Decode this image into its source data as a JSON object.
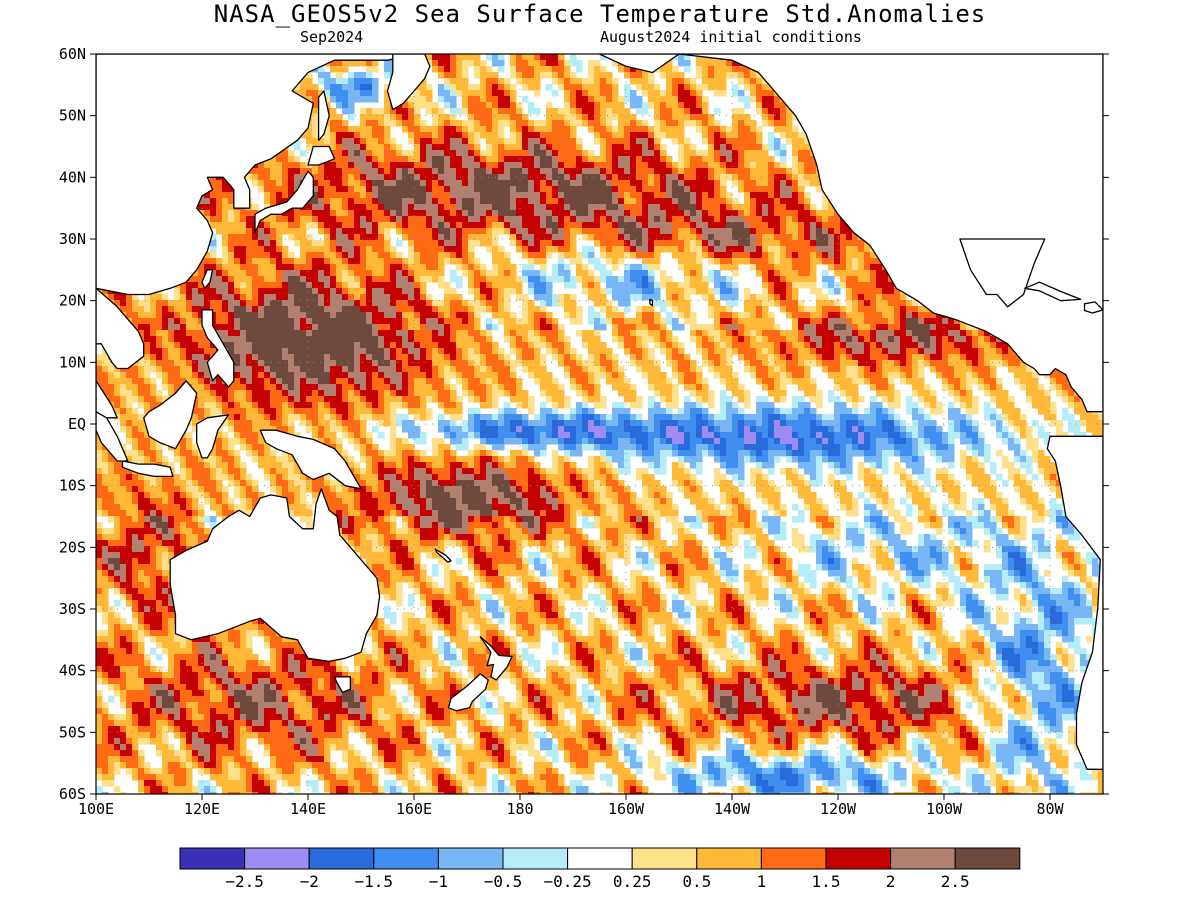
{
  "map": {
    "title": "NASA_GEOS5v2 Sea Surface Temperature Std.Anomalies",
    "subtitle_left": "Sep2024",
    "subtitle_right": "August2024 initial conditions",
    "lat_labels": [
      "60N",
      "50N",
      "40N",
      "30N",
      "20N",
      "10N",
      "EQ",
      "10S",
      "20S",
      "30S",
      "40S",
      "50S",
      "60S"
    ],
    "lon_labels": [
      "100E",
      "120E",
      "140E",
      "160E",
      "180",
      "160W",
      "140W",
      "120W",
      "100W",
      "80W"
    ],
    "extent": {
      "lon_min": 100,
      "lon_max": 290,
      "lat_min": -60,
      "lat_max": 60
    }
  },
  "colorbar": {
    "colors": [
      "#3b2fb8",
      "#9d8df2",
      "#2a6bdc",
      "#3f8ef0",
      "#78b6f6",
      "#b4ecf8",
      "#ffffff",
      "#ffe08a",
      "#ffb838",
      "#ff6a14",
      "#c50000",
      "#b28070",
      "#6e4a3e"
    ],
    "labels": [
      "−2.5",
      "−2",
      "−1.5",
      "−1",
      "−0.5",
      "−0.25",
      "0.25",
      "0.5",
      "1",
      "1.5",
      "2",
      "2.5"
    ]
  },
  "colors": {
    "land": "#ffffff",
    "coast": "#000000",
    "grid": "#8c8c8c"
  }
}
